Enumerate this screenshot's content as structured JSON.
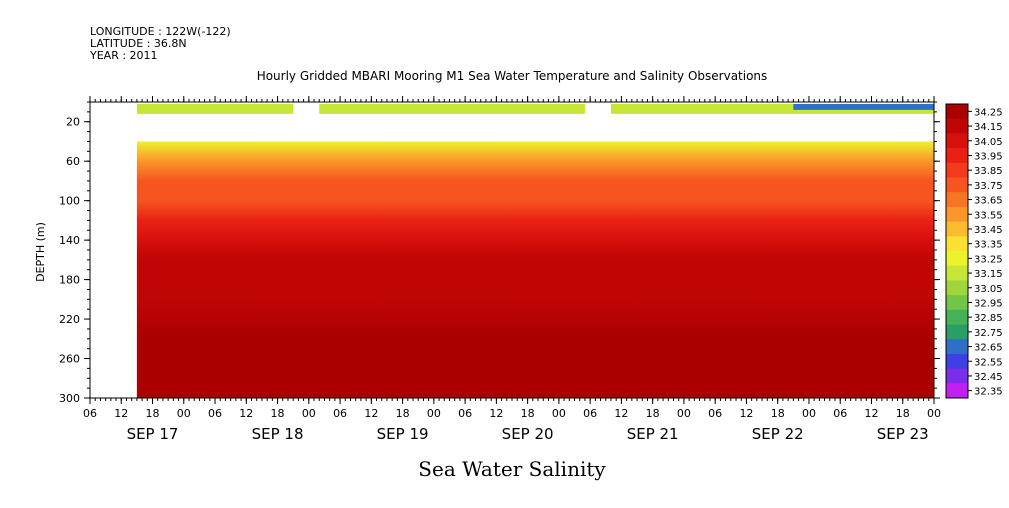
{
  "header": {
    "longitude": "LONGITUDE : 122W(-122)",
    "latitude": "LATITUDE : 36.8N",
    "year": "YEAR : 2011"
  },
  "chart_data": {
    "type": "heatmap",
    "title": "Hourly Gridded MBARI Mooring M1 Sea Water Temperature and Salinity Observations",
    "xlabel": "Sea Water Salinity",
    "ylabel": "DEPTH (m)",
    "xlim_hours": [
      0,
      162
    ],
    "ylim": [
      300,
      0
    ],
    "y_ticks": [
      20,
      60,
      100,
      140,
      180,
      220,
      260,
      300
    ],
    "x_hour_ticks": [
      "06",
      "12",
      "18",
      "00",
      "06",
      "12",
      "18",
      "00",
      "06",
      "12",
      "18",
      "00",
      "06",
      "12",
      "18",
      "00",
      "06",
      "12",
      "18",
      "00",
      "06",
      "12",
      "18",
      "00",
      "06",
      "12",
      "18",
      "00"
    ],
    "x_day_labels": [
      {
        "label": "SEP 17",
        "hour": 12
      },
      {
        "label": "SEP 18",
        "hour": 36
      },
      {
        "label": "SEP 19",
        "hour": 60
      },
      {
        "label": "SEP 20",
        "hour": 84
      },
      {
        "label": "SEP 21",
        "hour": 108
      },
      {
        "label": "SEP 22",
        "hour": 132
      },
      {
        "label": "SEP 23",
        "hour": 156
      }
    ],
    "colorbar": {
      "levels": [
        "34.25",
        "34.15",
        "34.05",
        "33.95",
        "33.85",
        "33.75",
        "33.65",
        "33.55",
        "33.45",
        "33.35",
        "33.25",
        "33.15",
        "33.05",
        "32.95",
        "32.85",
        "32.75",
        "32.65",
        "32.55",
        "32.45",
        "32.35"
      ],
      "colors": [
        "#aa0000",
        "#c00505",
        "#d8100c",
        "#ea2015",
        "#f33a1c",
        "#f65520",
        "#f87425",
        "#fa962a",
        "#fbbb2e",
        "#fbe030",
        "#ecf22c",
        "#c5e634",
        "#9fd63c",
        "#72c647",
        "#45b256",
        "#2b9e66",
        "#2f6fc8",
        "#3f3fe6",
        "#7a2ee8",
        "#c020f0"
      ]
    },
    "profile": [
      {
        "depth": 40,
        "salinity": 33.3
      },
      {
        "depth": 60,
        "salinity": 33.55
      },
      {
        "depth": 80,
        "salinity": 33.7
      },
      {
        "depth": 100,
        "salinity": 33.8
      },
      {
        "depth": 120,
        "salinity": 33.92
      },
      {
        "depth": 140,
        "salinity": 34.05
      },
      {
        "depth": 160,
        "salinity": 34.12
      },
      {
        "depth": 200,
        "salinity": 34.17
      },
      {
        "depth": 240,
        "salinity": 34.22
      },
      {
        "depth": 270,
        "salinity": 34.24
      },
      {
        "depth": 300,
        "salinity": 34.2
      }
    ],
    "surface_band": {
      "depth_range": [
        2,
        12
      ],
      "salinity": 33.12,
      "gaps_hours": [
        [
          0,
          9
        ],
        [
          39,
          44
        ],
        [
          95,
          100
        ]
      ],
      "low_salinity_hours": [
        135,
        162
      ]
    },
    "missing_depth_range": [
      12,
      40
    ],
    "data_start_hour": 9
  }
}
